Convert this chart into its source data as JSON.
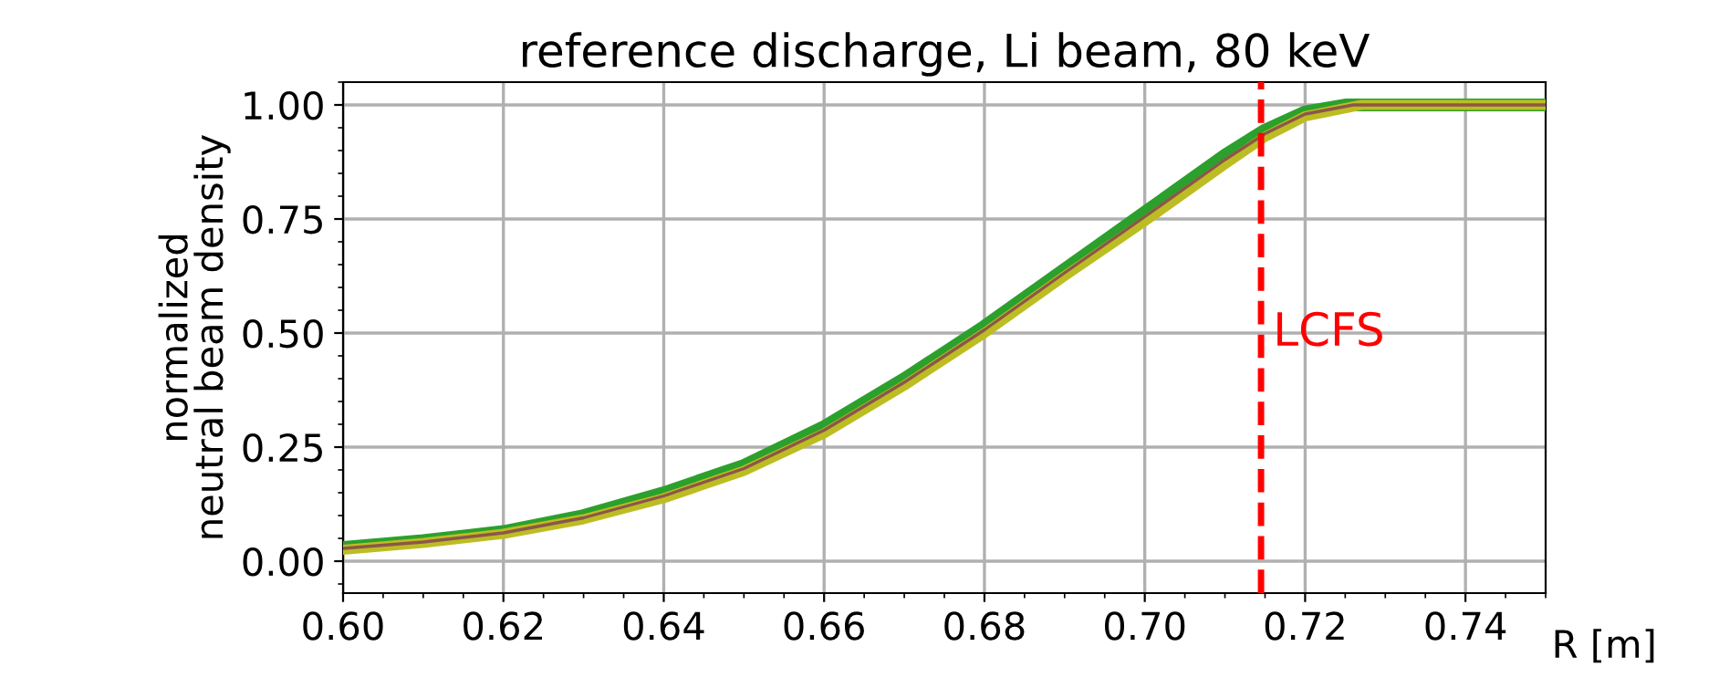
{
  "chart_data": {
    "type": "line",
    "title": "reference discharge, Li beam, 80 keV",
    "xlabel": "R [m]",
    "ylabel": "normalized\nneutral beam density",
    "series": [
      {
        "color": "#2ca02c",
        "x": [
          0.6,
          0.61,
          0.62,
          0.63,
          0.64,
          0.65,
          0.66,
          0.67,
          0.68,
          0.69,
          0.7,
          0.71,
          0.715,
          0.72,
          0.725,
          0.73,
          0.75
        ],
        "values": [
          0.03,
          0.045,
          0.065,
          0.1,
          0.15,
          0.21,
          0.295,
          0.4,
          0.515,
          0.64,
          0.765,
          0.89,
          0.945,
          0.985,
          1.0,
          1.0,
          1.0
        ]
      },
      {
        "color": "#8c564b",
        "x": [
          0.6,
          0.61,
          0.62,
          0.63,
          0.64,
          0.65,
          0.66,
          0.67,
          0.68,
          0.69,
          0.7,
          0.71,
          0.715,
          0.72,
          0.726,
          0.73,
          0.75
        ],
        "values": [
          0.028,
          0.042,
          0.062,
          0.095,
          0.143,
          0.203,
          0.287,
          0.392,
          0.507,
          0.632,
          0.755,
          0.88,
          0.937,
          0.98,
          1.0,
          1.0,
          1.0
        ]
      },
      {
        "color": "#bcbd22",
        "x": [
          0.6,
          0.61,
          0.62,
          0.63,
          0.64,
          0.65,
          0.66,
          0.67,
          0.68,
          0.69,
          0.7,
          0.71,
          0.715,
          0.72,
          0.727,
          0.73,
          0.75
        ],
        "values": [
          0.025,
          0.04,
          0.06,
          0.092,
          0.138,
          0.198,
          0.28,
          0.385,
          0.5,
          0.625,
          0.745,
          0.87,
          0.93,
          0.975,
          1.0,
          1.0,
          1.0
        ]
      }
    ],
    "ref_lines": [
      {
        "axis": "x",
        "value": 0.7145,
        "label": "LCFS",
        "color": "#ff0000",
        "line_style": "dashed"
      }
    ],
    "xlim": [
      0.6,
      0.75
    ],
    "xticks": [
      {
        "value": 0.6,
        "label": "0.60"
      },
      0.62,
      0.64,
      0.66,
      0.68,
      {
        "value": 0.7,
        "label": "0.70"
      },
      0.72,
      0.74
    ],
    "ylim": [
      -0.07,
      1.05
    ],
    "yticks": [
      {
        "value": 0,
        "label": "0.00"
      },
      0.25,
      {
        "value": 0.5,
        "label": "0.50"
      },
      0.75,
      {
        "value": 1,
        "label": "1.00"
      }
    ],
    "grid": true,
    "legend": false,
    "marker": "none",
    "line_style": "solid"
  }
}
